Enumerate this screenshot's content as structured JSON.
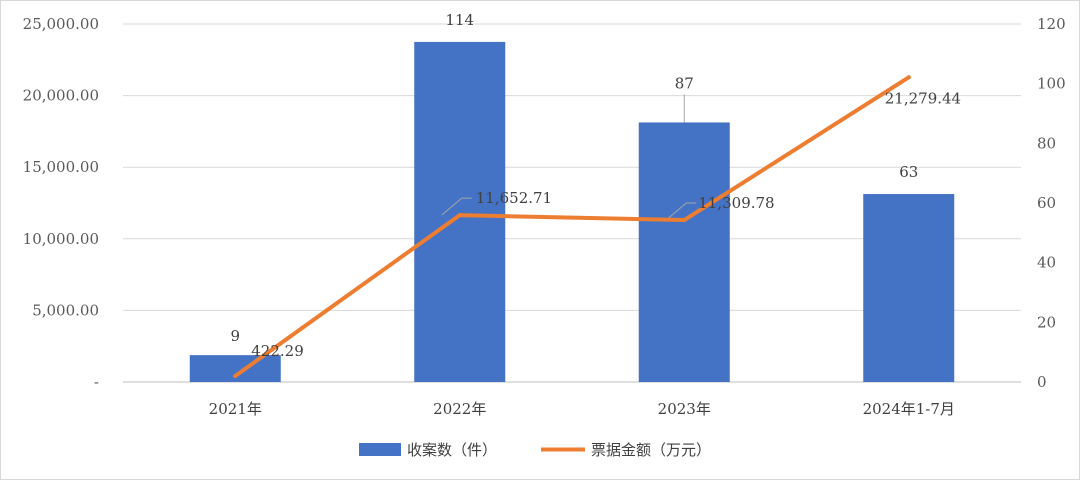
{
  "chart_data": {
    "type": "bar",
    "categories": [
      "2021年",
      "2022年",
      "2023年",
      "2024年1-7月"
    ],
    "series": [
      {
        "name": "收案数（件）",
        "type": "bar",
        "axis": "right",
        "color": "#4472C4",
        "values": [
          9,
          114,
          87,
          63
        ],
        "labels": [
          "9",
          "114",
          "87",
          "63"
        ]
      },
      {
        "name": "票据金额（万元）",
        "type": "line",
        "axis": "left",
        "color": "#ED7D31",
        "values": [
          422.29,
          11652.71,
          11309.78,
          21279.44
        ],
        "labels": [
          "422.29",
          "11,652.71",
          "11,309.78",
          "21,279.44"
        ]
      }
    ],
    "y_left": {
      "ylim": [
        0,
        25000
      ],
      "ticks": [
        0,
        5000,
        10000,
        15000,
        20000,
        25000
      ],
      "tick_labels": [
        "-",
        "5,000.00",
        "10,000.00",
        "15,000.00",
        "20,000.00",
        "25,000.00"
      ]
    },
    "y_right": {
      "ylim": [
        0,
        120
      ],
      "ticks": [
        0,
        20,
        40,
        60,
        80,
        100,
        120
      ],
      "tick_labels": [
        "0",
        "20",
        "40",
        "60",
        "80",
        "100",
        "120"
      ]
    },
    "grid": true,
    "legend": "bottom"
  }
}
